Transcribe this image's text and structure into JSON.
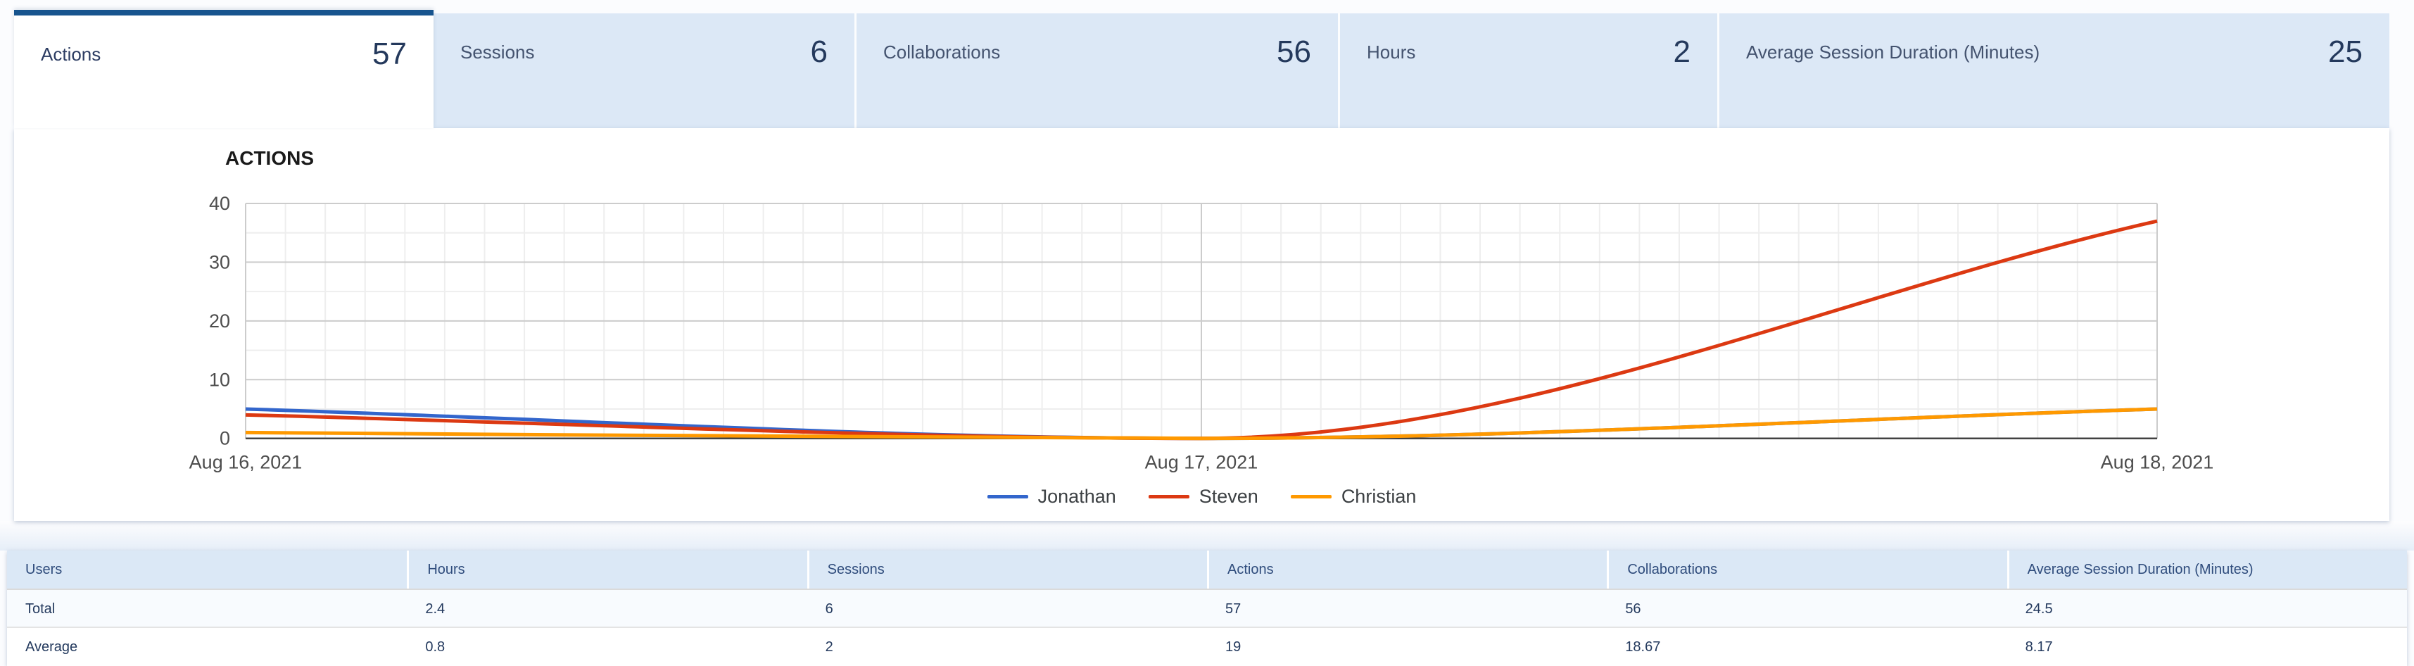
{
  "tabs": {
    "items": [
      {
        "label": "Actions",
        "value": "57",
        "active": true
      },
      {
        "label": "Sessions",
        "value": "6",
        "active": false
      },
      {
        "label": "Collaborations",
        "value": "56",
        "active": false
      },
      {
        "label": "Hours",
        "value": "2",
        "active": false
      },
      {
        "label": "Average Session Duration (Minutes)",
        "value": "25",
        "active": false
      }
    ]
  },
  "chart_data": {
    "type": "line",
    "title": "ACTIONS",
    "x": [
      "Aug 16, 2021",
      "Aug 17, 2021",
      "Aug 18, 2021"
    ],
    "series": [
      {
        "name": "Jonathan",
        "color": "#3366cc",
        "values": [
          5,
          0,
          5
        ]
      },
      {
        "name": "Steven",
        "color": "#dc3912",
        "values": [
          4,
          0,
          37
        ]
      },
      {
        "name": "Christian",
        "color": "#ff9900",
        "values": [
          1,
          0,
          5
        ]
      }
    ],
    "ylim": [
      0,
      40
    ],
    "yticks": [
      0,
      10,
      20,
      30,
      40
    ],
    "minor_y_step": 5,
    "vertical_minor_intervals": 48,
    "grid": true,
    "legend_position": "bottom",
    "curve": "smooth"
  },
  "table": {
    "columns": [
      "Users",
      "Hours",
      "Sessions",
      "Actions",
      "Collaborations",
      "Average Session Duration (Minutes)"
    ],
    "rows": [
      {
        "cells": [
          "Total",
          "2.4",
          "6",
          "57",
          "56",
          "24.5"
        ]
      },
      {
        "cells": [
          "Average",
          "0.8",
          "2",
          "19",
          "18.67",
          "8.17"
        ]
      }
    ]
  },
  "colors": {
    "active_tab_border": "#17548e",
    "inactive_tab_bg": "#dce8f6",
    "tab_value_text": "#24395c",
    "grid_major": "#cccccc",
    "grid_minor": "#eeeeee",
    "axis_zero_line": "#424242",
    "axis_text": "#4d4d4d",
    "table_header_bg": "#dbe8f6"
  }
}
